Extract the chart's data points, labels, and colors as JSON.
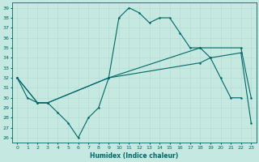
{
  "xlabel": "Humidex (Indice chaleur)",
  "bg_color": "#c5e8e0",
  "line_color": "#006868",
  "grid_color": "#b0d8d0",
  "xlim": [
    -0.5,
    23.5
  ],
  "ylim": [
    25.5,
    39.5
  ],
  "yticks": [
    26,
    27,
    28,
    29,
    30,
    31,
    32,
    33,
    34,
    35,
    36,
    37,
    38,
    39
  ],
  "xticks": [
    0,
    1,
    2,
    3,
    4,
    5,
    6,
    7,
    8,
    9,
    10,
    11,
    12,
    13,
    14,
    15,
    16,
    17,
    18,
    19,
    20,
    21,
    22,
    23
  ],
  "s1_x": [
    0,
    1,
    2,
    3,
    4,
    5,
    6,
    7,
    8,
    9,
    10,
    11,
    12,
    13,
    14,
    15,
    16,
    17,
    18,
    19,
    20,
    21,
    22
  ],
  "s1_y": [
    32,
    30,
    29.5,
    29.5,
    28.5,
    27.5,
    26,
    28,
    29,
    32,
    38,
    39,
    38.5,
    37.5,
    38,
    38,
    36.5,
    35,
    35,
    34,
    32,
    30,
    30
  ],
  "s2_x": [
    0,
    2,
    3,
    9,
    18,
    22,
    23
  ],
  "s2_y": [
    32,
    29.5,
    29.5,
    32,
    35,
    35,
    30
  ],
  "s3_x": [
    0,
    2,
    3,
    9,
    18,
    19,
    22,
    23
  ],
  "s3_y": [
    32,
    29.5,
    29.5,
    32,
    33.5,
    34,
    34.5,
    27.5
  ]
}
